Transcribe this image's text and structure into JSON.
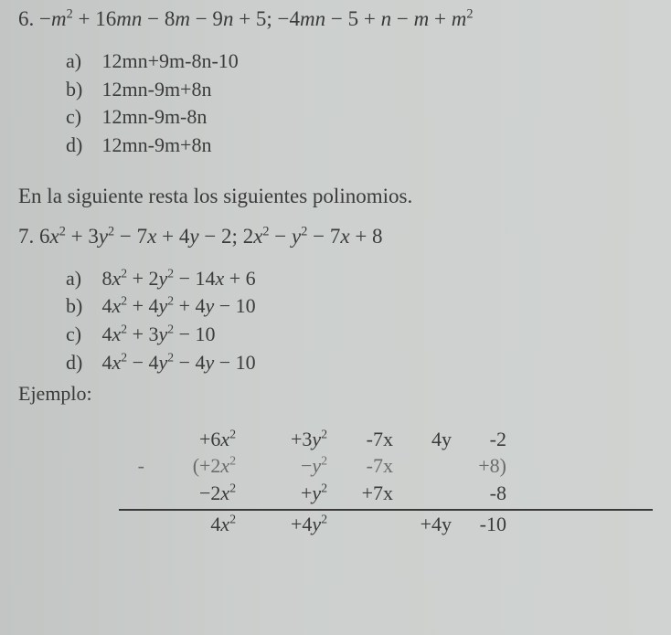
{
  "background_color": "#c8cbc9",
  "text_color": "#3a3a3a",
  "font_family": "Times New Roman",
  "q6": {
    "number": "6.",
    "expr_html": "−<i>m</i><sup>2</sup> + 16<i>mn</i> − 8<i>m</i> − 9<i>n</i> + 5;  −4<i>mn</i> − 5 + <i>n</i> − <i>m</i> + <i>m</i><sup>2</sup>",
    "options": [
      {
        "label": "a)",
        "text": "12mn+9m-8n-10"
      },
      {
        "label": "b)",
        "text": "12mn-9m+8n"
      },
      {
        "label": "c)",
        "text": "12mn-9m-8n"
      },
      {
        "label": "d)",
        "text": "12mn-9m+8n"
      }
    ]
  },
  "section_text": "En la siguiente resta los siguientes polinomios.",
  "q7": {
    "number": "7.",
    "expr_html": "6<i>x</i><sup>2</sup> + 3<i>y</i><sup>2</sup> − 7<i>x</i> + 4<i>y</i> − 2;  2<i>x</i><sup>2</sup> − <i>y</i><sup>2</sup> − 7<i>x</i> + 8",
    "options": [
      {
        "label": "a)",
        "html": "8<i>x</i><sup>2</sup> + 2<i>y</i><sup>2</sup> − 14<i>x</i> + 6"
      },
      {
        "label": "b)",
        "html": "4<i>x</i><sup>2</sup> + 4<i>y</i><sup>2</sup> + 4<i>y</i> − 10"
      },
      {
        "label": "c)",
        "html": "4<i>x</i><sup>2</sup> + 3<i>y</i><sup>2</sup> − 10"
      },
      {
        "label": "d)",
        "html": "4<i>x</i><sup>2</sup> − 4<i>y</i><sup>2</sup> − 4<i>y</i> − 10"
      }
    ]
  },
  "ejemplo_label": "Ejemplo:",
  "work": {
    "type": "aligned-subtraction",
    "fontsize": 22,
    "border_color": "#3a3a3a",
    "rows": [
      {
        "sign": "",
        "c1": "+6<i>x</i><sup>2</sup>",
        "c2": "+3<i>y</i><sup>2</sup>",
        "c3": "-7x",
        "c4": "4y",
        "c5": "-2"
      },
      {
        "sign": "-",
        "c1": "(+2<i>x</i><sup>2</sup>",
        "c2": "−<i>y</i><sup>2</sup>",
        "c3": "-7x",
        "c4": "",
        "c5": "+8)",
        "faded": true
      },
      {
        "sign": "",
        "c1": "−2<i>x</i><sup>2</sup>",
        "c2": "+<i>y</i><sup>2</sup>",
        "c3": "+7x",
        "c4": "",
        "c5": "-8"
      },
      {
        "sign": "",
        "c1": "4<i>x</i><sup>2</sup>",
        "c2": "+4<i>y</i><sup>2</sup>",
        "c3": "",
        "c4": "+4y",
        "c5": "-10",
        "result": true
      }
    ]
  }
}
